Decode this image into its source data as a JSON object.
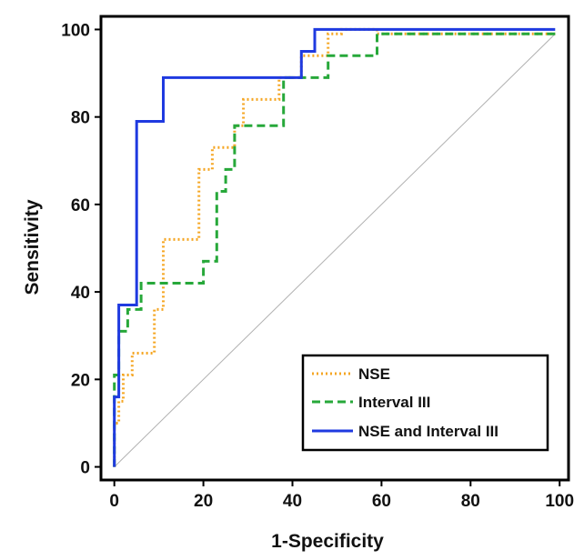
{
  "chart_data": {
    "type": "line",
    "title": "",
    "xlabel": "1-Specificity",
    "ylabel": "Sensitivity",
    "xlim": [
      -3,
      102
    ],
    "ylim": [
      -3,
      103
    ],
    "xticks": [
      0,
      20,
      40,
      60,
      80,
      100
    ],
    "yticks": [
      0,
      20,
      40,
      60,
      80,
      100
    ],
    "grid": false,
    "legend_position": "bottom-right",
    "reference_line": {
      "x": [
        0,
        99
      ],
      "y": [
        0,
        99
      ],
      "color": "#b0b0b0"
    },
    "series": [
      {
        "name": "NSE",
        "color": "#f5a623",
        "style": "dotted",
        "x": [
          0,
          0,
          1,
          1,
          2,
          2,
          4,
          4,
          9,
          9,
          11,
          11,
          19,
          19,
          22,
          22,
          27,
          27,
          29,
          29,
          37,
          37,
          42,
          42,
          48,
          48,
          51,
          51,
          59,
          59,
          99
        ],
        "y": [
          0,
          10,
          10,
          15,
          15,
          21,
          21,
          26,
          26,
          36,
          36,
          52,
          52,
          68,
          68,
          73,
          73,
          78,
          78,
          84,
          84,
          89,
          89,
          94,
          94,
          99,
          99,
          100,
          100,
          99,
          99
        ]
      },
      {
        "name": "Interval III",
        "color": "#27a83a",
        "style": "dashed",
        "x": [
          0,
          0,
          1,
          1,
          3,
          3,
          6,
          6,
          20,
          20,
          23,
          23,
          25,
          25,
          27,
          27,
          31,
          31,
          38,
          38,
          48,
          48,
          59,
          59,
          99
        ],
        "y": [
          0,
          21,
          21,
          31,
          31,
          36,
          36,
          42,
          42,
          47,
          47,
          63,
          63,
          68,
          68,
          78,
          78,
          78,
          78,
          89,
          89,
          94,
          94,
          99,
          99
        ]
      },
      {
        "name": "NSE and Interval III",
        "color": "#1f3ae0",
        "style": "solid",
        "x": [
          0,
          0,
          1,
          1,
          5,
          5,
          11,
          11,
          42,
          42,
          45,
          45,
          99
        ],
        "y": [
          0,
          16,
          16,
          37,
          37,
          79,
          79,
          89,
          89,
          95,
          95,
          100,
          100
        ]
      }
    ]
  }
}
